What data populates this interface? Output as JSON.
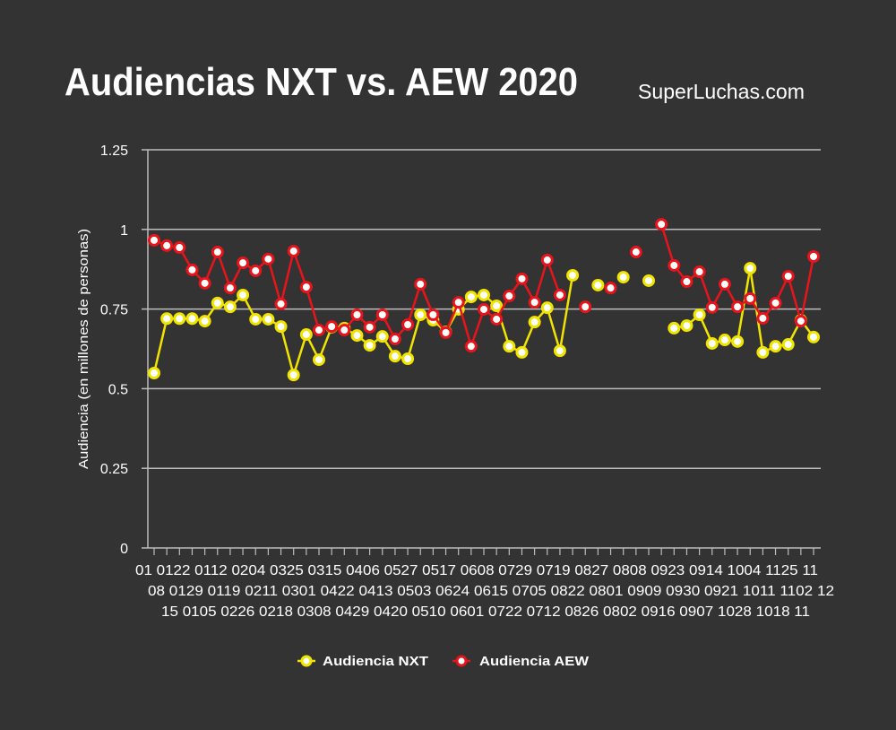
{
  "title": "Audiencias NXT vs. AEW 2020",
  "brand": "SuperLuchas.com",
  "colors": {
    "background": "#333333",
    "nxt": "#f0e400",
    "aew": "#e8141c",
    "grid": "#bdbdbd"
  },
  "chart_data": {
    "type": "line",
    "title": "Audiencias NXT vs. AEW 2020",
    "ylabel": "Audiencia (en millones de personas)",
    "xlabel": "",
    "ylim": [
      0,
      1.25
    ],
    "yticks": [
      "0",
      "0.25",
      "0.5",
      "0.75",
      "1",
      "1.25"
    ],
    "grid": true,
    "legend_position": "bottom",
    "x_tick_label_lines": [
      "01 0122 0112 0204 0325 0315 0406 0527 0517 0608 0729 0719 0827 0808 0923 0914 1004 1125 11",
      "08 0129 0119 0211 0301 0422 0413 0503 0624 0615 0705 0822 0801 0909 0930 0921 1011 1102 12",
      "15 0105 0226 0218 0308 0429 0420 0510 0601 0722 0712 0826 0802 0916 0907 1028 1018 11"
    ],
    "series": [
      {
        "name": "Audiencia NXT",
        "color": "#f0e400",
        "values": [
          0.549,
          0.72,
          0.72,
          0.72,
          0.712,
          0.769,
          0.757,
          0.794,
          0.718,
          0.718,
          0.695,
          0.543,
          0.67,
          0.591,
          0.693,
          0.69,
          0.667,
          0.636,
          0.664,
          0.602,
          0.594,
          0.732,
          0.715,
          0.678,
          0.749,
          0.788,
          0.794,
          0.76,
          0.633,
          0.614,
          0.709,
          0.754,
          0.619,
          0.856,
          null,
          0.825,
          null,
          0.85,
          null,
          0.839,
          null,
          0.69,
          0.698,
          0.732,
          0.642,
          0.653,
          0.648,
          0.878,
          0.614,
          0.633,
          0.639,
          0.715,
          0.662
        ]
      },
      {
        "name": "Audiencia AEW",
        "color": "#e8141c",
        "values": [
          0.966,
          0.949,
          0.943,
          0.873,
          0.831,
          0.929,
          0.816,
          0.895,
          0.87,
          0.907,
          0.766,
          0.932,
          0.819,
          0.684,
          0.695,
          0.684,
          0.732,
          0.693,
          0.732,
          0.656,
          0.701,
          0.828,
          0.732,
          0.676,
          0.771,
          0.633,
          0.749,
          0.718,
          0.791,
          0.845,
          0.771,
          0.904,
          0.794,
          null,
          0.757,
          null,
          0.816,
          null,
          0.929,
          null,
          1.016,
          0.887,
          0.836,
          0.867,
          0.755,
          0.828,
          0.757,
          0.783,
          0.721,
          0.769,
          0.853,
          0.712,
          0.915
        ]
      }
    ]
  }
}
